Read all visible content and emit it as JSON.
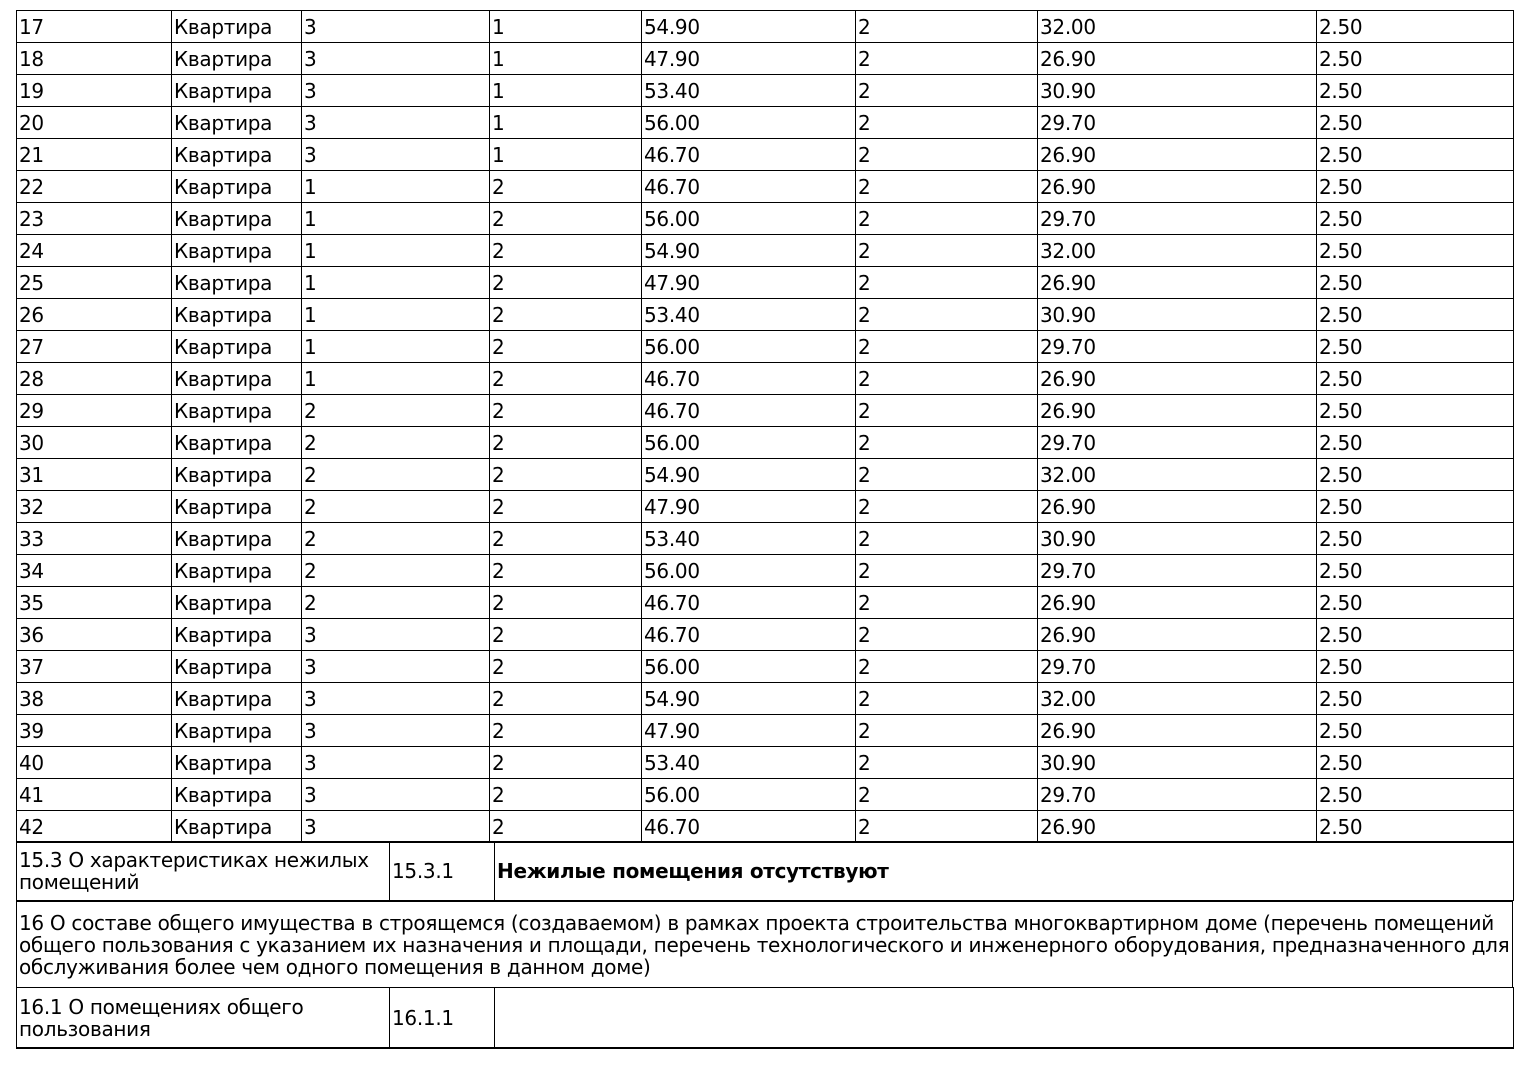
{
  "apartments": [
    [
      "17",
      "Квартира",
      "3",
      "1",
      "54.90",
      "2",
      "32.00",
      "2.50"
    ],
    [
      "18",
      "Квартира",
      "3",
      "1",
      "47.90",
      "2",
      "26.90",
      "2.50"
    ],
    [
      "19",
      "Квартира",
      "3",
      "1",
      "53.40",
      "2",
      "30.90",
      "2.50"
    ],
    [
      "20",
      "Квартира",
      "3",
      "1",
      "56.00",
      "2",
      "29.70",
      "2.50"
    ],
    [
      "21",
      "Квартира",
      "3",
      "1",
      "46.70",
      "2",
      "26.90",
      "2.50"
    ],
    [
      "22",
      "Квартира",
      "1",
      "2",
      "46.70",
      "2",
      "26.90",
      "2.50"
    ],
    [
      "23",
      "Квартира",
      "1",
      "2",
      "56.00",
      "2",
      "29.70",
      "2.50"
    ],
    [
      "24",
      "Квартира",
      "1",
      "2",
      "54.90",
      "2",
      "32.00",
      "2.50"
    ],
    [
      "25",
      "Квартира",
      "1",
      "2",
      "47.90",
      "2",
      "26.90",
      "2.50"
    ],
    [
      "26",
      "Квартира",
      "1",
      "2",
      "53.40",
      "2",
      "30.90",
      "2.50"
    ],
    [
      "27",
      "Квартира",
      "1",
      "2",
      "56.00",
      "2",
      "29.70",
      "2.50"
    ],
    [
      "28",
      "Квартира",
      "1",
      "2",
      "46.70",
      "2",
      "26.90",
      "2.50"
    ],
    [
      "29",
      "Квартира",
      "2",
      "2",
      "46.70",
      "2",
      "26.90",
      "2.50"
    ],
    [
      "30",
      "Квартира",
      "2",
      "2",
      "56.00",
      "2",
      "29.70",
      "2.50"
    ],
    [
      "31",
      "Квартира",
      "2",
      "2",
      "54.90",
      "2",
      "32.00",
      "2.50"
    ],
    [
      "32",
      "Квартира",
      "2",
      "2",
      "47.90",
      "2",
      "26.90",
      "2.50"
    ],
    [
      "33",
      "Квартира",
      "2",
      "2",
      "53.40",
      "2",
      "30.90",
      "2.50"
    ],
    [
      "34",
      "Квартира",
      "2",
      "2",
      "56.00",
      "2",
      "29.70",
      "2.50"
    ],
    [
      "35",
      "Квартира",
      "2",
      "2",
      "46.70",
      "2",
      "26.90",
      "2.50"
    ],
    [
      "36",
      "Квартира",
      "3",
      "2",
      "46.70",
      "2",
      "26.90",
      "2.50"
    ],
    [
      "37",
      "Квартира",
      "3",
      "2",
      "56.00",
      "2",
      "29.70",
      "2.50"
    ],
    [
      "38",
      "Квартира",
      "3",
      "2",
      "54.90",
      "2",
      "32.00",
      "2.50"
    ],
    [
      "39",
      "Квартира",
      "3",
      "2",
      "47.90",
      "2",
      "26.90",
      "2.50"
    ],
    [
      "40",
      "Квартира",
      "3",
      "2",
      "53.40",
      "2",
      "30.90",
      "2.50"
    ],
    [
      "41",
      "Квартира",
      "3",
      "2",
      "56.00",
      "2",
      "29.70",
      "2.50"
    ],
    [
      "42",
      "Квартира",
      "3",
      "2",
      "46.70",
      "2",
      "26.90",
      "2.50"
    ]
  ],
  "section_15_3": {
    "title": "15.3 О характеристиках нежилых помещений",
    "code": "15.3.1",
    "value": "Нежилые помещения отсутствуют"
  },
  "section_16": {
    "title": "16 О составе общего имущества в строящемся (создаваемом) в рамках проекта строительства многоквартирном доме (перечень помещений общего пользования с указанием их назначения и площади, перечень технологического и инженерного оборудования, предназначенного для обслуживания более чем одного помещения в данном доме)"
  },
  "section_16_1": {
    "title": "16.1 О помещениях общего пользования",
    "code": "16.1.1",
    "value": ""
  }
}
